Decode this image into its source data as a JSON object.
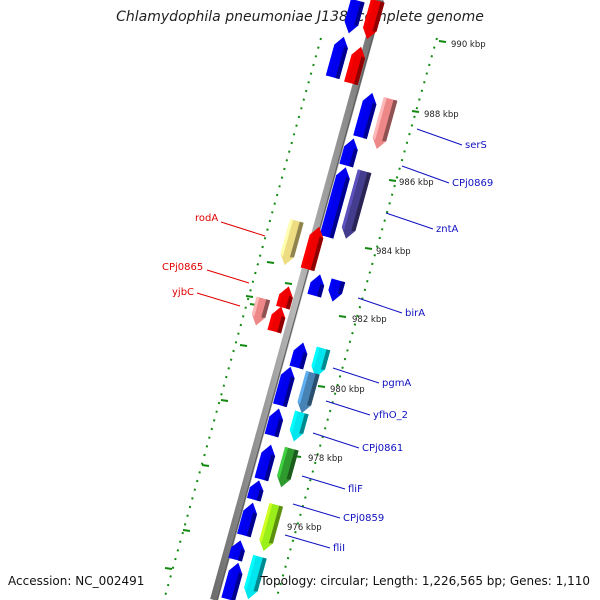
{
  "title": "Chlamydophila pneumoniae J138, complete genome",
  "footer": {
    "accession": "Accession: NC_002491",
    "stats": "Topology: circular; Length: 1,226,565 bp; Genes: 1,110"
  },
  "scale_labels": [
    {
      "text": "990 kbp"
    },
    {
      "text": "988 kbp"
    },
    {
      "text": "986 kbp"
    },
    {
      "text": "984 kbp"
    },
    {
      "text": "982 kbp"
    },
    {
      "text": "980 kbp"
    },
    {
      "text": "978 kbp"
    },
    {
      "text": "976 kbp"
    }
  ],
  "gene_labels_right": [
    "serS",
    "CPj0869",
    "zntA",
    "birA",
    "pgmA",
    "yfhO_2",
    "CPj0861",
    "fliF",
    "CPj0859",
    "fliI"
  ],
  "gene_labels_left": [
    "rodA",
    "CPj0865",
    "yjbC"
  ],
  "colors": {
    "forward_blue": "#0000ee",
    "reverse_red": "#ee0000",
    "pink": "#ee8888",
    "navy": "#443c8c",
    "khaki": "#eedc82",
    "cyan": "#00e5ee",
    "steelblue": "#4682b4",
    "green": "#2e9a2e",
    "lime": "#9aee1a",
    "dots": "#128a12",
    "backbone": "#808080",
    "label_red": "#e00000",
    "label_blue": "#1010c0"
  }
}
